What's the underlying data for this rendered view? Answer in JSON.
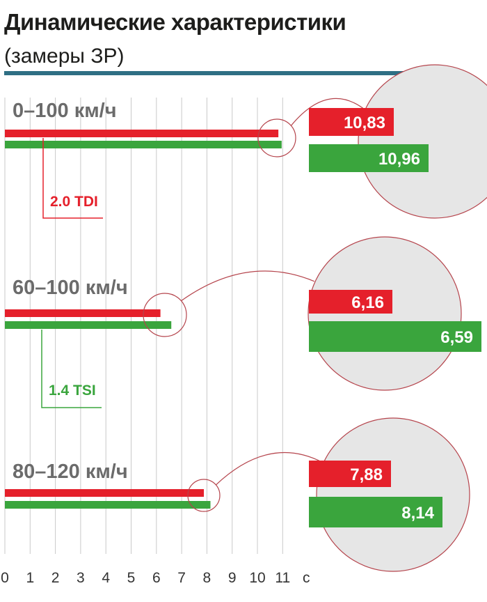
{
  "header": {
    "title": "Динамические характеристики",
    "subtitle": "(замеры ЗР)"
  },
  "colors": {
    "tdi": "#e5202b",
    "tsi": "#3aa53d",
    "rule": "#2f6f84",
    "grid": "#c9c9c9",
    "label": "#6b6b6b",
    "circle": "#e6e6e6",
    "connector": "#b5444c"
  },
  "chart_data": {
    "type": "bar",
    "orientation": "horizontal",
    "unit": "с",
    "xlim": [
      0,
      11
    ],
    "x_ticks": [
      "0",
      "1",
      "2",
      "3",
      "4",
      "5",
      "6",
      "7",
      "8",
      "9",
      "10",
      "11",
      "с"
    ],
    "categories": [
      "0–100 км/ч",
      "60–100 км/ч",
      "80–120 км/ч"
    ],
    "series": [
      {
        "name": "2.0 TDI",
        "color": "#e5202b",
        "values": [
          10.83,
          6.16,
          7.88
        ],
        "labels": [
          "10,83",
          "6,16",
          "7,88"
        ]
      },
      {
        "name": "1.4 TSI",
        "color": "#3aa53d",
        "values": [
          10.96,
          6.59,
          8.14
        ],
        "labels": [
          "10,96",
          "6,59",
          "8,14"
        ]
      }
    ],
    "grid": "vertical",
    "annotations": "magnifier circles show exact values"
  }
}
